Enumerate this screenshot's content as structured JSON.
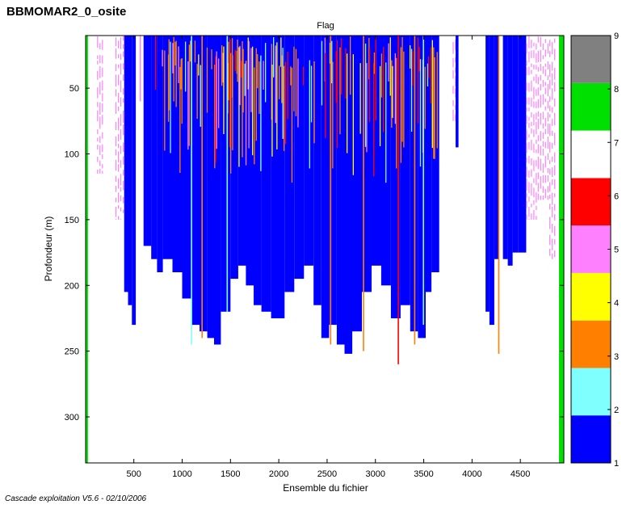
{
  "page": {
    "figure_title": "BBMOMAR2_0_osite",
    "footer_note": "Cascade exploitation V5.6 - 02/10/2006"
  },
  "chart_data": {
    "type": "heatmap",
    "title": "Flag",
    "xlabel": "Ensemble du fichier",
    "ylabel": "Profondeur (m)",
    "xlim": [
      1,
      4950
    ],
    "ylim": [
      335,
      10
    ],
    "y_axis_inverted": true,
    "x_ticks": [
      500,
      1000,
      1500,
      2000,
      2500,
      3000,
      3500,
      4000,
      4500
    ],
    "y_ticks": [
      50,
      100,
      150,
      200,
      250,
      300
    ],
    "colorbar": {
      "range": [
        1,
        9
      ],
      "ticks": [
        1,
        2,
        3,
        4,
        5,
        6,
        7,
        8,
        9
      ],
      "levels": [
        {
          "flag": 1,
          "color": "#0000ff"
        },
        {
          "flag": 2,
          "color": "#80ffff"
        },
        {
          "flag": 3,
          "color": "#ff8000"
        },
        {
          "flag": 4,
          "color": "#ffff00"
        },
        {
          "flag": 5,
          "color": "#ff80ff"
        },
        {
          "flag": 6,
          "color": "#ff0000"
        },
        {
          "flag": 7,
          "color": "#ffffff"
        },
        {
          "flag": 8,
          "color": "#00e000"
        },
        {
          "flag": 9,
          "color": "#808080"
        }
      ]
    },
    "columns": [
      {
        "x0": 1,
        "x1": 25,
        "depth_max": 335,
        "flag": 8
      },
      {
        "x0": 120,
        "x1": 180,
        "depth_max": 115,
        "flag": 5,
        "sparse": true
      },
      {
        "x0": 310,
        "x1": 400,
        "depth_max": 150,
        "flag": 5,
        "sparse": true
      },
      {
        "x0": 400,
        "x1": 440,
        "depth_max": 205,
        "flag": 1
      },
      {
        "x0": 440,
        "x1": 480,
        "depth_max": 215,
        "flag": 1
      },
      {
        "x0": 480,
        "x1": 520,
        "depth_max": 230,
        "flag": 1
      },
      {
        "x0": 600,
        "x1": 680,
        "depth_max": 170,
        "flag": 1
      },
      {
        "x0": 680,
        "x1": 740,
        "depth_max": 180,
        "flag": 1
      },
      {
        "x0": 740,
        "x1": 800,
        "depth_max": 190,
        "flag": 1
      },
      {
        "x0": 800,
        "x1": 900,
        "depth_max": 180,
        "flag": 1
      },
      {
        "x0": 900,
        "x1": 1000,
        "depth_max": 190,
        "flag": 1
      },
      {
        "x0": 1000,
        "x1": 1100,
        "depth_max": 210,
        "flag": 1
      },
      {
        "x0": 1100,
        "x1": 1180,
        "depth_max": 230,
        "flag": 1
      },
      {
        "x0": 1180,
        "x1": 1260,
        "depth_max": 235,
        "flag": 1
      },
      {
        "x0": 1260,
        "x1": 1330,
        "depth_max": 240,
        "flag": 1
      },
      {
        "x0": 1330,
        "x1": 1400,
        "depth_max": 245,
        "flag": 1
      },
      {
        "x0": 1400,
        "x1": 1500,
        "depth_max": 220,
        "flag": 1
      },
      {
        "x0": 1500,
        "x1": 1580,
        "depth_max": 195,
        "flag": 1
      },
      {
        "x0": 1580,
        "x1": 1660,
        "depth_max": 185,
        "flag": 1
      },
      {
        "x0": 1660,
        "x1": 1740,
        "depth_max": 200,
        "flag": 1
      },
      {
        "x0": 1740,
        "x1": 1820,
        "depth_max": 215,
        "flag": 1
      },
      {
        "x0": 1820,
        "x1": 1920,
        "depth_max": 220,
        "flag": 1
      },
      {
        "x0": 1920,
        "x1": 2060,
        "depth_max": 225,
        "flag": 1
      },
      {
        "x0": 2060,
        "x1": 2160,
        "depth_max": 205,
        "flag": 1
      },
      {
        "x0": 2160,
        "x1": 2260,
        "depth_max": 195,
        "flag": 1
      },
      {
        "x0": 2260,
        "x1": 2360,
        "depth_max": 185,
        "flag": 1
      },
      {
        "x0": 2360,
        "x1": 2440,
        "depth_max": 215,
        "flag": 1
      },
      {
        "x0": 2440,
        "x1": 2520,
        "depth_max": 240,
        "flag": 1
      },
      {
        "x0": 2520,
        "x1": 2600,
        "depth_max": 230,
        "flag": 1
      },
      {
        "x0": 2600,
        "x1": 2680,
        "depth_max": 245,
        "flag": 1
      },
      {
        "x0": 2680,
        "x1": 2760,
        "depth_max": 252,
        "flag": 1
      },
      {
        "x0": 2760,
        "x1": 2860,
        "depth_max": 235,
        "flag": 1
      },
      {
        "x0": 2860,
        "x1": 2960,
        "depth_max": 205,
        "flag": 1
      },
      {
        "x0": 2960,
        "x1": 3060,
        "depth_max": 185,
        "flag": 1
      },
      {
        "x0": 3060,
        "x1": 3160,
        "depth_max": 200,
        "flag": 1
      },
      {
        "x0": 3160,
        "x1": 3260,
        "depth_max": 225,
        "flag": 1
      },
      {
        "x0": 3260,
        "x1": 3360,
        "depth_max": 215,
        "flag": 1
      },
      {
        "x0": 3360,
        "x1": 3440,
        "depth_max": 235,
        "flag": 1
      },
      {
        "x0": 3440,
        "x1": 3520,
        "depth_max": 240,
        "flag": 1
      },
      {
        "x0": 3520,
        "x1": 3580,
        "depth_max": 205,
        "flag": 1
      },
      {
        "x0": 3580,
        "x1": 3660,
        "depth_max": 190,
        "flag": 1
      },
      {
        "x0": 3800,
        "x1": 3830,
        "depth_max": 75,
        "flag": 5,
        "sparse": true
      },
      {
        "x0": 3830,
        "x1": 3860,
        "depth_max": 95,
        "flag": 1
      },
      {
        "x0": 4140,
        "x1": 4180,
        "depth_max": 220,
        "flag": 1
      },
      {
        "x0": 4180,
        "x1": 4230,
        "depth_max": 230,
        "flag": 1
      },
      {
        "x0": 4230,
        "x1": 4280,
        "depth_max": 180,
        "flag": 1
      },
      {
        "x0": 4320,
        "x1": 4370,
        "depth_max": 180,
        "flag": 1
      },
      {
        "x0": 4370,
        "x1": 4420,
        "depth_max": 185,
        "flag": 1
      },
      {
        "x0": 4420,
        "x1": 4480,
        "depth_max": 175,
        "flag": 1
      },
      {
        "x0": 4480,
        "x1": 4560,
        "depth_max": 175,
        "flag": 1
      },
      {
        "x0": 4560,
        "x1": 4680,
        "depth_max": 150,
        "flag": 5,
        "sparse": true
      },
      {
        "x0": 4680,
        "x1": 4800,
        "depth_max": 135,
        "flag": 5,
        "sparse": true
      },
      {
        "x0": 4800,
        "x1": 4860,
        "depth_max": 180,
        "flag": 5,
        "sparse": true
      },
      {
        "x0": 4900,
        "x1": 4950,
        "depth_max": 335,
        "flag": 8
      }
    ],
    "stripes": [
      {
        "x": 560,
        "depth_max": 60,
        "flag": 5
      },
      {
        "x": 1090,
        "depth_max": 245,
        "flag": 2
      },
      {
        "x": 1200,
        "depth_max": 240,
        "flag": 3
      },
      {
        "x": 1460,
        "depth_max": 220,
        "flag": 2
      },
      {
        "x": 2530,
        "depth_max": 245,
        "flag": 3
      },
      {
        "x": 2870,
        "depth_max": 250,
        "flag": 3
      },
      {
        "x": 3230,
        "depth_max": 260,
        "flag": 6
      },
      {
        "x": 3400,
        "depth_max": 245,
        "flag": 3
      },
      {
        "x": 3490,
        "depth_max": 230,
        "flag": 2
      },
      {
        "x": 4270,
        "depth_max": 252,
        "flag": 3
      }
    ],
    "mixed_range": [
      700,
      3650
    ]
  }
}
